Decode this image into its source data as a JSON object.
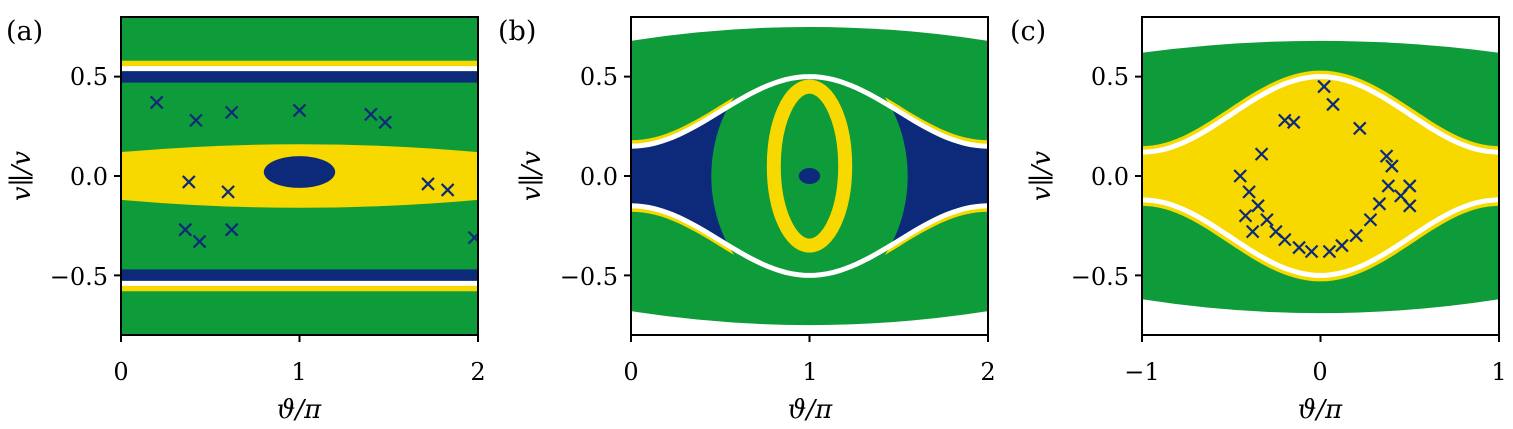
{
  "colors": {
    "green": "#0e9b3a",
    "yellow": "#f7d900",
    "navy": "#0d2a7a",
    "white": "#ffffff"
  },
  "chart_data": [
    {
      "type": "scatter",
      "panel_label": "(a)",
      "xlabel": "ϑ/π",
      "ylabel": "v∥/v",
      "xlim": [
        0,
        2
      ],
      "ylim": [
        -0.8,
        0.8
      ],
      "xticks": [
        "0",
        "1",
        "2"
      ],
      "yticks": [
        "0.5",
        "0.0",
        "−0.5"
      ],
      "separatrix_upper": [
        [
          0,
          0.54
        ],
        [
          1,
          0.55
        ],
        [
          2,
          0.54
        ]
      ],
      "separatrix_lower": [
        [
          0,
          -0.54
        ],
        [
          1,
          -0.55
        ],
        [
          2,
          -0.54
        ]
      ],
      "yellow_bands": [
        [
          0,
          0.54
        ],
        [
          0,
          -0.54
        ],
        [
          0,
          0.05
        ],
        [
          0,
          -0.05
        ]
      ],
      "navy_bands": [
        [
          0,
          0.5
        ],
        [
          0,
          -0.5
        ]
      ],
      "navy_cluster": {
        "x": 1.0,
        "y": 0.02,
        "rx": 0.2,
        "ry": 0.08
      },
      "crosses": [
        [
          0.2,
          0.37
        ],
        [
          0.42,
          0.28
        ],
        [
          0.62,
          0.32
        ],
        [
          1.0,
          0.33
        ],
        [
          1.4,
          0.31
        ],
        [
          1.48,
          0.27
        ],
        [
          0.36,
          -0.27
        ],
        [
          0.44,
          -0.33
        ],
        [
          0.62,
          -0.27
        ],
        [
          1.72,
          -0.04
        ],
        [
          1.83,
          -0.07
        ],
        [
          1.98,
          -0.31
        ],
        [
          0.38,
          -0.03
        ],
        [
          0.6,
          -0.08
        ]
      ]
    },
    {
      "type": "scatter",
      "panel_label": "(b)",
      "xlabel": "ϑ/π",
      "ylabel": "v∥/v",
      "xlim": [
        0,
        2
      ],
      "ylim": [
        -0.8,
        0.8
      ],
      "xticks": [
        "0",
        "1",
        "2"
      ],
      "yticks": [
        "0.5",
        "0.0",
        "−0.5"
      ],
      "separatrix_upper": [
        [
          0,
          0.15
        ],
        [
          1,
          0.5
        ],
        [
          2,
          0.15
        ]
      ],
      "separatrix_lower": [
        [
          0,
          -0.15
        ],
        [
          1,
          -0.5
        ],
        [
          2,
          -0.15
        ]
      ],
      "inner_yellow_ring": {
        "x": 1.0,
        "y": 0.05,
        "rx": 0.2,
        "ry": 0.4
      },
      "navy_cluster": {
        "x": 1.0,
        "y": 0.0,
        "rx": 0.06,
        "ry": 0.04
      }
    },
    {
      "type": "scatter",
      "panel_label": "(c)",
      "xlabel": "ϑ/π",
      "ylabel": "v∥/v",
      "xlim": [
        -1,
        1
      ],
      "ylim": [
        -0.8,
        0.8
      ],
      "xticks": [
        "−1",
        "0",
        "1"
      ],
      "yticks": [
        "0.5",
        "0.0",
        "−0.5"
      ],
      "separatrix_upper": [
        [
          -1,
          0.12
        ],
        [
          0,
          0.5
        ],
        [
          1,
          0.12
        ]
      ],
      "separatrix_lower": [
        [
          -1,
          -0.12
        ],
        [
          0,
          -0.5
        ],
        [
          1,
          -0.12
        ]
      ],
      "crosses": [
        [
          -0.45,
          0.0
        ],
        [
          -0.4,
          -0.08
        ],
        [
          -0.35,
          -0.15
        ],
        [
          -0.3,
          -0.22
        ],
        [
          -0.25,
          -0.28
        ],
        [
          -0.2,
          -0.32
        ],
        [
          -0.12,
          -0.36
        ],
        [
          -0.05,
          -0.38
        ],
        [
          0.05,
          -0.38
        ],
        [
          0.12,
          -0.35
        ],
        [
          0.2,
          -0.3
        ],
        [
          0.28,
          -0.22
        ],
        [
          0.33,
          -0.14
        ],
        [
          0.38,
          -0.05
        ],
        [
          0.4,
          0.05
        ],
        [
          0.45,
          -0.1
        ],
        [
          0.5,
          -0.15
        ],
        [
          0.37,
          0.1
        ],
        [
          -0.2,
          0.28
        ],
        [
          -0.15,
          0.27
        ],
        [
          0.02,
          0.45
        ],
        [
          0.07,
          0.36
        ],
        [
          0.22,
          0.24
        ],
        [
          -0.33,
          0.11
        ],
        [
          0.5,
          -0.05
        ],
        [
          -0.38,
          -0.28
        ],
        [
          -0.42,
          -0.2
        ]
      ]
    }
  ]
}
